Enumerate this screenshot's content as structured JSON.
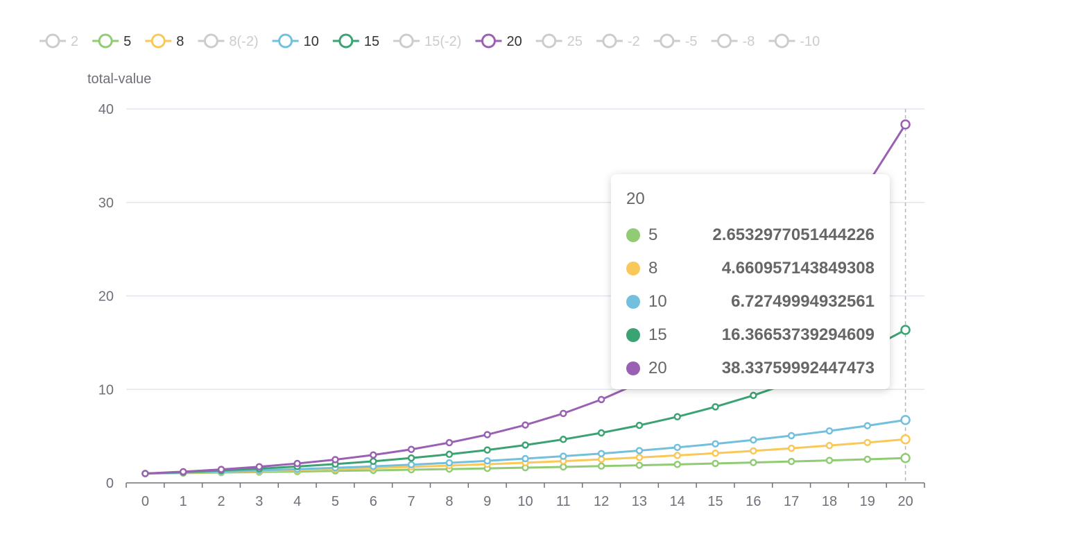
{
  "chart_data": {
    "type": "line",
    "title": "",
    "xlabel": "",
    "ylabel": "total-value",
    "x": [
      0,
      1,
      2,
      3,
      4,
      5,
      6,
      7,
      8,
      9,
      10,
      11,
      12,
      13,
      14,
      15,
      16,
      17,
      18,
      19,
      20
    ],
    "ylim": [
      0,
      40
    ],
    "y_ticks": [
      0,
      10,
      20,
      30,
      40
    ],
    "grid": true,
    "legend_position": "top",
    "legend": [
      {
        "name": "2",
        "color": "#cccccc",
        "active": false
      },
      {
        "name": "5",
        "color": "#91cc75",
        "active": true
      },
      {
        "name": "8",
        "color": "#fac858",
        "active": true
      },
      {
        "name": "8(-2)",
        "color": "#cccccc",
        "active": false
      },
      {
        "name": "10",
        "color": "#73c0de",
        "active": true
      },
      {
        "name": "15",
        "color": "#3ba272",
        "active": true
      },
      {
        "name": "15(-2)",
        "color": "#cccccc",
        "active": false
      },
      {
        "name": "20",
        "color": "#9a60b4",
        "active": true
      },
      {
        "name": "25",
        "color": "#cccccc",
        "active": false
      },
      {
        "name": "-2",
        "color": "#cccccc",
        "active": false
      },
      {
        "name": "-5",
        "color": "#cccccc",
        "active": false
      },
      {
        "name": "-8",
        "color": "#cccccc",
        "active": false
      },
      {
        "name": "-10",
        "color": "#cccccc",
        "active": false
      }
    ],
    "series": [
      {
        "name": "5",
        "color": "#91cc75",
        "values": [
          1,
          1.05,
          1.1025,
          1.1576,
          1.2155,
          1.2763,
          1.3401,
          1.4071,
          1.4775,
          1.5513,
          1.6289,
          1.7103,
          1.7959,
          1.8856,
          1.9799,
          2.0789,
          2.1829,
          2.292,
          2.4066,
          2.527,
          2.6533
        ]
      },
      {
        "name": "8",
        "color": "#fac858",
        "values": [
          1,
          1.08,
          1.1664,
          1.2597,
          1.3605,
          1.4693,
          1.5869,
          1.7138,
          1.8509,
          1.999,
          2.1589,
          2.3316,
          2.5182,
          2.7196,
          2.9372,
          3.1722,
          3.4259,
          3.7,
          3.996,
          4.3157,
          4.661
        ]
      },
      {
        "name": "10",
        "color": "#73c0de",
        "values": [
          1,
          1.1,
          1.21,
          1.331,
          1.4641,
          1.6105,
          1.7716,
          1.9487,
          2.1436,
          2.3579,
          2.5937,
          2.8531,
          3.1384,
          3.4523,
          3.7975,
          4.1772,
          4.595,
          5.0545,
          5.5599,
          6.1159,
          6.7275
        ]
      },
      {
        "name": "15",
        "color": "#3ba272",
        "values": [
          1,
          1.15,
          1.3225,
          1.5209,
          1.749,
          2.0114,
          2.3131,
          2.66,
          3.059,
          3.5179,
          4.0456,
          4.6524,
          5.3503,
          6.1528,
          7.0757,
          8.1371,
          9.3576,
          10.7613,
          12.3755,
          14.2318,
          16.3665
        ]
      },
      {
        "name": "20",
        "color": "#9a60b4",
        "values": [
          1,
          1.2,
          1.44,
          1.728,
          2.0736,
          2.4883,
          2.986,
          3.5832,
          4.2998,
          5.1598,
          6.1917,
          7.4301,
          8.9161,
          10.6993,
          12.8392,
          15.407,
          18.4884,
          22.1861,
          26.6233,
          31.948,
          38.3376
        ]
      }
    ],
    "tooltip": {
      "title": "20",
      "rows": [
        {
          "name": "5",
          "color": "#91cc75",
          "value": "2.6532977051444226"
        },
        {
          "name": "8",
          "color": "#fac858",
          "value": "4.660957143849308"
        },
        {
          "name": "10",
          "color": "#73c0de",
          "value": "6.72749994932561"
        },
        {
          "name": "15",
          "color": "#3ba272",
          "value": "16.36653739294609"
        },
        {
          "name": "20",
          "color": "#9a60b4",
          "value": "38.33759992447473"
        }
      ]
    }
  }
}
